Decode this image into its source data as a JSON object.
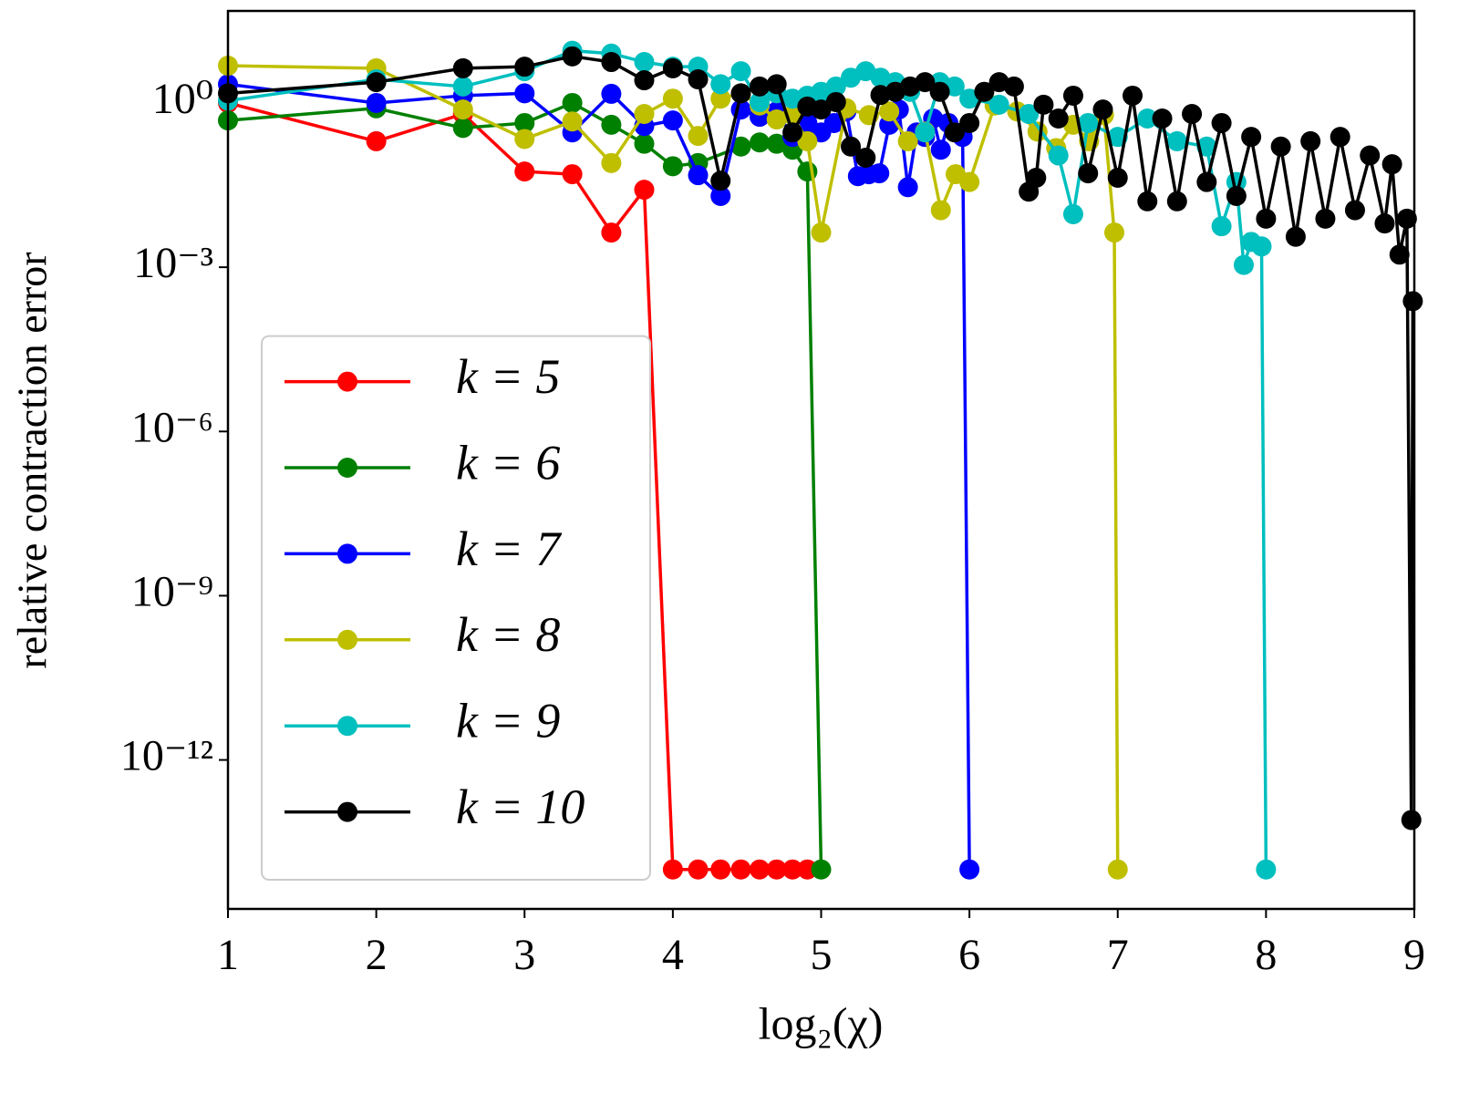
{
  "chart_data": {
    "type": "line",
    "xlabel": "log₂(χ)",
    "ylabel": "relative contraction error",
    "xlim": [
      1,
      9
    ],
    "xticks": [
      1,
      2,
      3,
      4,
      5,
      6,
      7,
      8,
      9
    ],
    "ylim": [
      1.9e-15,
      48
    ],
    "log_y": true,
    "yticks": [
      {
        "value": 1,
        "label": "10⁰"
      },
      {
        "value": 0.001,
        "label": "10⁻³"
      },
      {
        "value": 1e-06,
        "label": "10⁻⁶"
      },
      {
        "value": 1e-09,
        "label": "10⁻⁹"
      },
      {
        "value": 1e-12,
        "label": "10⁻¹²"
      }
    ],
    "grid": false,
    "legend": "lower left",
    "series": [
      {
        "name": "k = 5",
        "color": "#ff0000",
        "x": [
          1,
          2,
          2.585,
          3,
          3.322,
          3.585,
          3.807,
          4,
          4.17,
          4.322,
          4.459,
          4.585,
          4.7,
          4.807,
          4.907
        ],
        "values": [
          1,
          0.2,
          0.63,
          0.056,
          0.05,
          0.0043,
          0.026,
          1e-14,
          1e-14,
          1e-14,
          1e-14,
          1e-14,
          1e-14,
          1e-14,
          1e-14
        ]
      },
      {
        "name": "k = 6",
        "color": "#008000",
        "x": [
          1,
          2,
          2.585,
          3,
          3.322,
          3.585,
          3.807,
          4,
          4.17,
          4.459,
          4.585,
          4.7,
          4.807,
          4.907,
          5
        ],
        "values": [
          0.48,
          0.8,
          0.35,
          0.43,
          1,
          0.4,
          0.18,
          0.07,
          0.08,
          0.16,
          0.19,
          0.18,
          0.14,
          0.056,
          1e-14
        ]
      },
      {
        "name": "k = 7",
        "color": "#0000ff",
        "x": [
          1,
          2,
          2.585,
          3,
          3.322,
          3.585,
          3.807,
          4,
          4.17,
          4.322,
          4.459,
          4.585,
          4.7,
          4.807,
          4.907,
          5,
          5.087,
          5.17,
          5.248,
          5.322,
          5.392,
          5.459,
          5.524,
          5.585,
          5.644,
          5.7,
          5.755,
          5.807,
          5.858,
          5.907,
          5.954,
          6
        ],
        "values": [
          2.2,
          1,
          1.36,
          1.5,
          0.29,
          1.47,
          0.38,
          0.48,
          0.048,
          0.02,
          0.76,
          0.56,
          0.7,
          0.24,
          0.43,
          0.29,
          0.43,
          0.7,
          0.046,
          0.05,
          0.052,
          0.4,
          0.76,
          0.029,
          0.29,
          0.24,
          0.52,
          0.14,
          0.43,
          0.29,
          0.24,
          1e-14
        ]
      },
      {
        "name": "k = 8",
        "color": "#bfbf00",
        "x": [
          1,
          2,
          2.585,
          3,
          3.322,
          3.585,
          3.807,
          4,
          4.17,
          4.322,
          4.459,
          4.585,
          4.7,
          4.807,
          4.907,
          5,
          5.17,
          5.322,
          5.459,
          5.585,
          5.7,
          5.807,
          5.907,
          6,
          6.17,
          6.322,
          6.459,
          6.585,
          6.7,
          6.807,
          6.907,
          6.977,
          7
        ],
        "values": [
          4.8,
          4.3,
          0.76,
          0.22,
          0.46,
          0.08,
          0.63,
          1.2,
          0.25,
          1.2,
          1.5,
          0.9,
          0.5,
          0.6,
          0.2,
          0.0043,
          0.8,
          0.6,
          0.7,
          0.2,
          0.3,
          0.011,
          0.05,
          0.036,
          0.9,
          0.7,
          0.3,
          0.15,
          0.4,
          0.2,
          0.6,
          0.0043,
          1e-14
        ]
      },
      {
        "name": "k = 9",
        "color": "#00bfbf",
        "x": [
          1,
          2,
          2.585,
          3,
          3.322,
          3.585,
          3.807,
          4,
          4.17,
          4.322,
          4.459,
          4.585,
          4.7,
          4.807,
          4.907,
          5,
          5.1,
          5.2,
          5.3,
          5.4,
          5.5,
          5.6,
          5.7,
          5.8,
          5.9,
          6,
          6.2,
          6.4,
          6.6,
          6.7,
          6.8,
          7,
          7.2,
          7.4,
          7.6,
          7.7,
          7.8,
          7.85,
          7.9,
          7.97,
          8
        ],
        "values": [
          1.1,
          2.7,
          2,
          3.8,
          9,
          8,
          5.6,
          4.6,
          4.6,
          2.2,
          3.8,
          1.04,
          1.5,
          1.2,
          1.36,
          1.6,
          2,
          2.9,
          3.8,
          2.9,
          2.4,
          1.6,
          0.29,
          2.4,
          2,
          1.2,
          0.93,
          0.63,
          0.11,
          0.0093,
          0.43,
          0.24,
          0.52,
          0.2,
          0.16,
          0.0056,
          0.036,
          0.0011,
          0.0029,
          0.0024,
          1e-14
        ]
      },
      {
        "name": "k = 10",
        "color": "#000000",
        "x": [
          1,
          2,
          2.585,
          3,
          3.322,
          3.585,
          3.807,
          4,
          4.17,
          4.322,
          4.459,
          4.585,
          4.7,
          4.807,
          4.907,
          5,
          5.1,
          5.2,
          5.3,
          5.4,
          5.5,
          5.6,
          5.7,
          5.8,
          5.9,
          6,
          6.1,
          6.2,
          6.3,
          6.4,
          6.45,
          6.5,
          6.6,
          6.7,
          6.8,
          6.9,
          7,
          7.1,
          7.2,
          7.3,
          7.4,
          7.5,
          7.6,
          7.7,
          7.8,
          7.9,
          8,
          8.1,
          8.2,
          8.3,
          8.4,
          8.5,
          8.6,
          8.7,
          8.8,
          8.85,
          8.9,
          8.95,
          8.98,
          8.99
        ],
        "values": [
          1.5,
          2.4,
          4.3,
          4.6,
          7.1,
          5.6,
          2.6,
          4.3,
          2.7,
          0.038,
          1.5,
          2,
          2.2,
          0.29,
          0.86,
          0.76,
          1.04,
          0.16,
          0.1,
          1.4,
          1.6,
          2,
          2.4,
          1.6,
          0.29,
          0.43,
          1.6,
          2.4,
          2,
          0.024,
          0.043,
          0.93,
          0.52,
          1.36,
          0.052,
          0.76,
          0.043,
          1.36,
          0.016,
          0.52,
          0.016,
          0.63,
          0.036,
          0.43,
          0.02,
          0.24,
          0.0077,
          0.16,
          0.0036,
          0.2,
          0.0077,
          0.24,
          0.011,
          0.11,
          0.0063,
          0.076,
          0.0017,
          0.0077,
          8e-14,
          0.00024
        ]
      }
    ]
  }
}
